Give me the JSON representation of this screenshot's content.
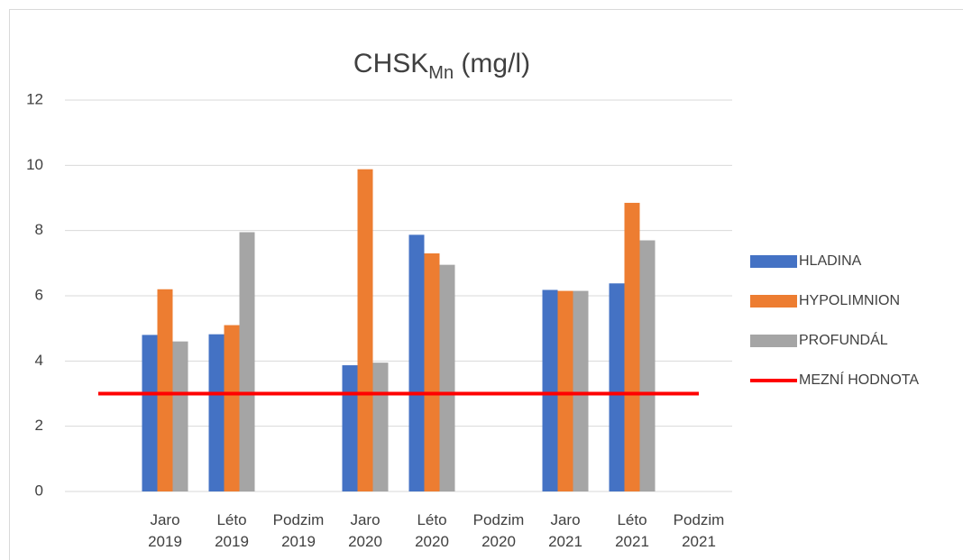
{
  "chart_data": {
    "type": "bar",
    "title": "CHSK",
    "title_subscript": "Mn",
    "title_suffix": " (mg/l)",
    "categories": [
      null,
      "Jaro 2019",
      "Léto 2019",
      "Podzim 2019",
      "Jaro 2020",
      "Léto 2020",
      "Podzim 2020",
      "Jaro 2021",
      "Léto 2021",
      "Podzim 2021"
    ],
    "series": [
      {
        "name": "HLADINA",
        "color": "#4472c4",
        "values": [
          null,
          4.8,
          4.82,
          null,
          3.87,
          7.87,
          null,
          6.18,
          6.38,
          null
        ]
      },
      {
        "name": "HYPOLIMNION",
        "color": "#ed7d31",
        "values": [
          null,
          6.2,
          5.1,
          null,
          9.88,
          7.3,
          null,
          6.15,
          8.85,
          null
        ]
      },
      {
        "name": "PROFUNDÁL",
        "color": "#a5a5a5",
        "values": [
          null,
          4.6,
          7.95,
          null,
          3.95,
          6.95,
          null,
          6.15,
          7.7,
          null
        ]
      },
      {
        "name": "MEZNÍ HODNOTA",
        "color": "#ff0000",
        "type": "line",
        "values": [
          3,
          3,
          3,
          3,
          3,
          3,
          3,
          3,
          3,
          3
        ]
      }
    ],
    "ylim": [
      0,
      12
    ],
    "yticks": [
      0,
      2,
      4,
      6,
      8,
      10,
      12
    ],
    "grid": true,
    "legend": "right"
  }
}
